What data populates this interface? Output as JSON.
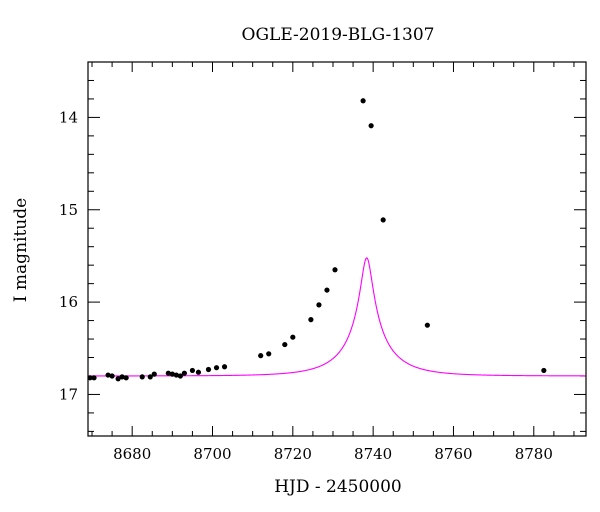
{
  "chart_data": {
    "type": "scatter",
    "title": "OGLE-2019-BLG-1307",
    "xlabel": "HJD - 2450000",
    "ylabel": "I magnitude",
    "xlim": [
      8669,
      8793
    ],
    "ylim": [
      17.45,
      13.4
    ],
    "y_inverted": true,
    "xticks": [
      8680,
      8700,
      8720,
      8740,
      8760,
      8780
    ],
    "yticks": [
      14,
      15,
      16,
      17
    ],
    "grid": false,
    "point_color": "#000000",
    "model_color": "#ff00ff",
    "model": {
      "type": "point-lens",
      "t0": 8738.4,
      "u0": 0.1183,
      "tE": 11.7,
      "m_base": 16.8,
      "fs": 0.3
    },
    "series": [
      {
        "type": "scatter",
        "x": [
          8669.5,
          8670.5,
          8674.0,
          8675.0,
          8676.5,
          8677.5,
          8678.5,
          8682.5,
          8684.5,
          8685.5,
          8689.0,
          8690.0,
          8691.0,
          8692.0,
          8693.0,
          8695.0,
          8696.5,
          8699.0,
          8701.0,
          8703.0,
          8712.0,
          8714.0,
          8718.0,
          8720.0,
          8724.5,
          8726.5,
          8728.5,
          8730.5,
          8737.5,
          8739.5,
          8742.5,
          8753.5,
          8782.5
        ],
        "y": [
          16.82,
          16.82,
          16.79,
          16.8,
          16.83,
          16.81,
          16.82,
          16.81,
          16.81,
          16.78,
          16.77,
          16.78,
          16.79,
          16.8,
          16.77,
          16.74,
          16.76,
          16.73,
          16.71,
          16.7,
          16.58,
          16.56,
          16.46,
          16.38,
          16.19,
          16.03,
          15.87,
          15.65,
          13.82,
          14.09,
          15.11,
          16.25,
          16.74
        ]
      }
    ]
  }
}
